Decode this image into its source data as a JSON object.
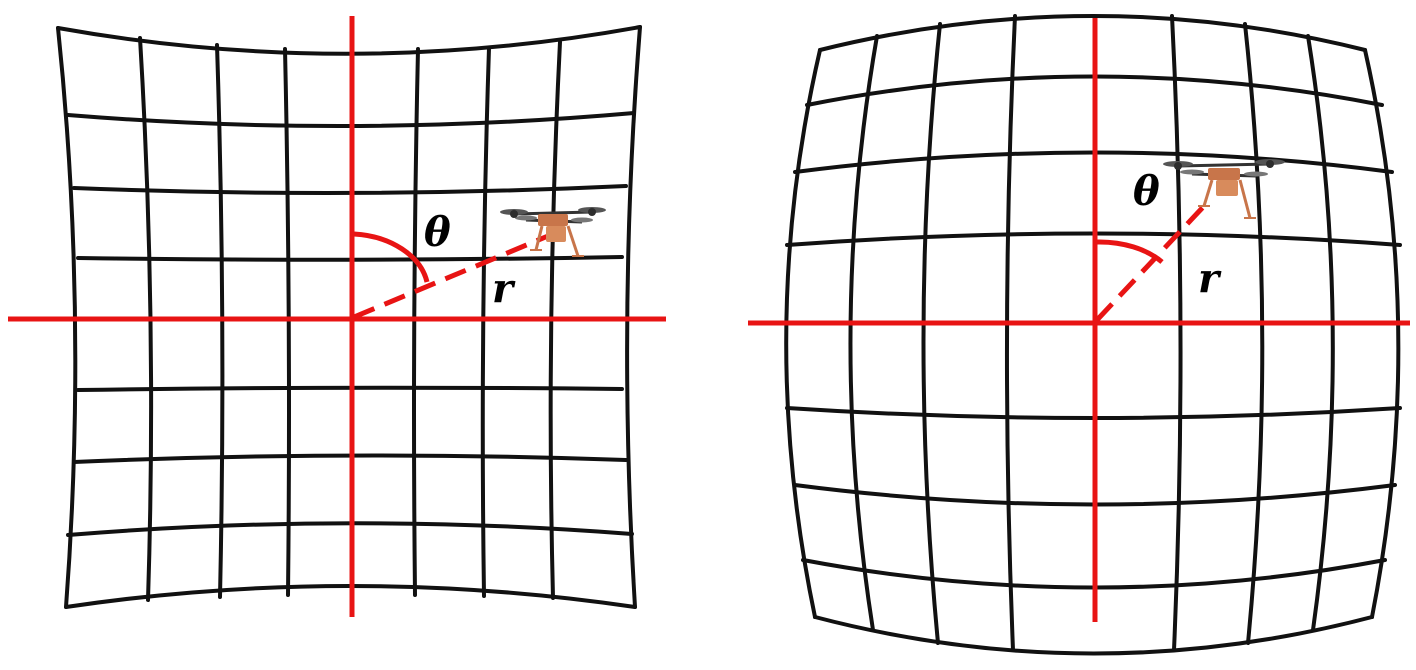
{
  "panels": [
    {
      "id": "pincushion",
      "angle_symbol": "θ",
      "radius_symbol": "r",
      "grid": {
        "columns": 8,
        "rows": 8
      }
    },
    {
      "id": "barrel",
      "angle_symbol": "θ",
      "radius_symbol": "r",
      "grid": {
        "columns": 8,
        "rows": 8
      }
    }
  ],
  "colors": {
    "grid": "#111111",
    "axes": "#e81414",
    "drone_body": "#c8754a",
    "drone_frame": "#333333"
  },
  "icons": {
    "target": "drone-icon"
  }
}
